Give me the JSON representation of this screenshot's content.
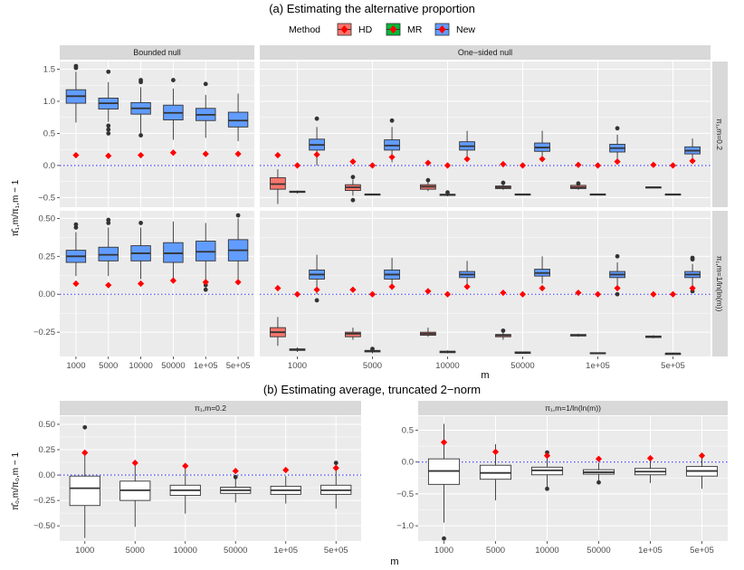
{
  "figure": {
    "title_a": "(a) Estimating the alternative proportion",
    "title_b": "(b) Estimating average, truncated 2−norm",
    "colors": {
      "panel_bg": "#ebebeb",
      "grid": "#ffffff",
      "strip_bg": "#d9d9d9",
      "hd": "#f8766d",
      "mr": "#00ba38",
      "new": "#619cff",
      "plain_box": "#ffffff",
      "mean_marker": "#ff0000",
      "outlier": "#333333",
      "ref_line": "#3333ff"
    },
    "legend": {
      "title": "Method",
      "items": [
        {
          "label": "HD",
          "color": "#f8766d"
        },
        {
          "label": "MR",
          "color": "#00ba38"
        },
        {
          "label": "New",
          "color": "#619cff"
        }
      ]
    },
    "part_a": {
      "ylabel": "π̂₁,m/π₁,m − 1",
      "xlabel": "m",
      "col_strips": [
        "Bounded null",
        "One−sided null"
      ],
      "row_strips": [
        "π₁,m=0.2",
        "π₁,m=1/ln(ln(m))"
      ]
    },
    "part_b": {
      "ylabel": "π̂₀,m/π₀,m − 1",
      "xlabel": "m",
      "strips": [
        "π₁,m=0.2",
        "π₁,m=1/ln(ln(m))"
      ]
    }
  },
  "chart_data": [
    {
      "id": "a-bounded-top",
      "type": "box",
      "categories": [
        "1000",
        "5000",
        "10000",
        "50000",
        "1e+05",
        "5e+05"
      ],
      "ylim": [
        -0.65,
        1.62
      ],
      "yticks": [
        -0.5,
        0.0,
        0.5,
        1.0,
        1.5
      ],
      "ytick_labels": [
        "−0.5",
        "0.0",
        "0.5",
        "1.0",
        "1.5"
      ],
      "ref_line": 0,
      "series": [
        {
          "name": "New",
          "boxes": [
            {
              "lo": 0.67,
              "q1": 0.97,
              "med": 1.08,
              "q3": 1.18,
              "hi": 1.46,
              "out": [
                1.52,
                1.55
              ],
              "mean": 0.16
            },
            {
              "lo": 0.68,
              "q1": 0.88,
              "med": 0.97,
              "q3": 1.05,
              "hi": 1.3,
              "out": [
                1.46,
                0.62,
                0.56,
                0.5
              ],
              "mean": 0.15
            },
            {
              "lo": 0.5,
              "q1": 0.8,
              "med": 0.89,
              "q3": 0.98,
              "hi": 1.22,
              "out": [
                1.3,
                1.33,
                0.47
              ],
              "mean": 0.16
            },
            {
              "lo": 0.4,
              "q1": 0.71,
              "med": 0.82,
              "q3": 0.94,
              "hi": 1.2,
              "out": [
                1.33
              ],
              "mean": 0.2
            },
            {
              "lo": 0.43,
              "q1": 0.7,
              "med": 0.79,
              "q3": 0.89,
              "hi": 1.1,
              "out": [
                1.27
              ],
              "mean": 0.18
            },
            {
              "lo": 0.38,
              "q1": 0.6,
              "med": 0.7,
              "q3": 0.83,
              "hi": 1.12,
              "out": [],
              "mean": 0.18
            }
          ]
        }
      ]
    },
    {
      "id": "a-onesided-top",
      "type": "box",
      "categories": [
        "1000",
        "5000",
        "10000",
        "50000",
        "1e+05",
        "5e+05"
      ],
      "ylim": [
        -0.65,
        1.62
      ],
      "ref_line": 0,
      "series": [
        {
          "name": "HD",
          "boxes": [
            {
              "lo": -0.6,
              "q1": -0.37,
              "med": -0.29,
              "q3": -0.19,
              "hi": -0.06,
              "out": [
                0.16
              ],
              "mean": 0.16
            },
            {
              "lo": -0.47,
              "q1": -0.39,
              "med": -0.34,
              "q3": -0.3,
              "hi": -0.22,
              "out": [
                -0.54,
                -0.18
              ],
              "mean": 0.06
            },
            {
              "lo": -0.4,
              "q1": -0.37,
              "med": -0.33,
              "q3": -0.3,
              "hi": -0.25,
              "out": [
                -0.23
              ],
              "mean": 0.04
            },
            {
              "lo": -0.38,
              "q1": -0.36,
              "med": -0.34,
              "q3": -0.32,
              "hi": -0.29,
              "out": [
                -0.27
              ],
              "mean": 0.02
            },
            {
              "lo": -0.38,
              "q1": -0.36,
              "med": -0.34,
              "q3": -0.31,
              "hi": -0.29,
              "out": [
                -0.28
              ],
              "mean": 0.01
            },
            {
              "lo": -0.35,
              "q1": -0.345,
              "med": -0.34,
              "q3": -0.335,
              "hi": -0.33,
              "out": [],
              "mean": 0.01
            }
          ]
        },
        {
          "name": "MR",
          "boxes": [
            {
              "lo": -0.44,
              "q1": -0.42,
              "med": -0.41,
              "q3": -0.4,
              "hi": -0.39,
              "out": [],
              "mean": 0.0
            },
            {
              "lo": -0.46,
              "q1": -0.455,
              "med": -0.45,
              "q3": -0.445,
              "hi": -0.44,
              "out": [],
              "mean": 0.0
            },
            {
              "lo": -0.48,
              "q1": -0.46,
              "med": -0.455,
              "q3": -0.45,
              "hi": -0.44,
              "out": [
                -0.42
              ],
              "mean": 0.0
            },
            {
              "lo": -0.46,
              "q1": -0.455,
              "med": -0.45,
              "q3": -0.445,
              "hi": -0.44,
              "out": [],
              "mean": 0.0
            },
            {
              "lo": -0.46,
              "q1": -0.455,
              "med": -0.45,
              "q3": -0.445,
              "hi": -0.44,
              "out": [],
              "mean": 0.0
            },
            {
              "lo": -0.46,
              "q1": -0.455,
              "med": -0.45,
              "q3": -0.445,
              "hi": -0.44,
              "out": [],
              "mean": 0.0
            }
          ]
        },
        {
          "name": "New",
          "boxes": [
            {
              "lo": 0.0,
              "q1": 0.24,
              "med": 0.32,
              "q3": 0.41,
              "hi": 0.6,
              "out": [
                0.73
              ],
              "mean": 0.17
            },
            {
              "lo": 0.05,
              "q1": 0.24,
              "med": 0.31,
              "q3": 0.4,
              "hi": 0.6,
              "out": [
                0.7
              ],
              "mean": 0.13
            },
            {
              "lo": 0.08,
              "q1": 0.24,
              "med": 0.3,
              "q3": 0.37,
              "hi": 0.54,
              "out": [],
              "mean": 0.1
            },
            {
              "lo": 0.07,
              "q1": 0.22,
              "med": 0.28,
              "q3": 0.35,
              "hi": 0.54,
              "out": [],
              "mean": 0.1
            },
            {
              "lo": 0.04,
              "q1": 0.21,
              "med": 0.27,
              "q3": 0.33,
              "hi": 0.48,
              "out": [
                0.58
              ],
              "mean": 0.06
            },
            {
              "lo": 0.03,
              "q1": 0.18,
              "med": 0.23,
              "q3": 0.29,
              "hi": 0.42,
              "out": [],
              "mean": 0.07
            }
          ]
        }
      ]
    },
    {
      "id": "a-bounded-bottom",
      "type": "box",
      "categories": [
        "1000",
        "5000",
        "10000",
        "50000",
        "1e+05",
        "5e+05"
      ],
      "ylim": [
        -0.41,
        0.55
      ],
      "yticks": [
        -0.25,
        0.0,
        0.25,
        0.5
      ],
      "ytick_labels": [
        "−0.25",
        "0.00",
        "0.25",
        "0.50"
      ],
      "ref_line": 0,
      "series": [
        {
          "name": "New",
          "boxes": [
            {
              "lo": 0.12,
              "q1": 0.21,
              "med": 0.25,
              "q3": 0.29,
              "hi": 0.41,
              "out": [
                0.44,
                0.46
              ],
              "mean": 0.07
            },
            {
              "lo": 0.12,
              "q1": 0.22,
              "med": 0.26,
              "q3": 0.31,
              "hi": 0.44,
              "out": [
                0.47,
                0.49
              ],
              "mean": 0.06
            },
            {
              "lo": 0.1,
              "q1": 0.22,
              "med": 0.27,
              "q3": 0.32,
              "hi": 0.44,
              "out": [
                0.47
              ],
              "mean": 0.07
            },
            {
              "lo": 0.1,
              "q1": 0.21,
              "med": 0.27,
              "q3": 0.34,
              "hi": 0.48,
              "out": [],
              "mean": 0.09
            },
            {
              "lo": 0.09,
              "q1": 0.22,
              "med": 0.28,
              "q3": 0.35,
              "hi": 0.47,
              "out": [
                0.06,
                0.03
              ],
              "mean": 0.08
            },
            {
              "lo": 0.08,
              "q1": 0.22,
              "med": 0.29,
              "q3": 0.36,
              "hi": 0.5,
              "out": [
                0.52
              ],
              "mean": 0.08
            }
          ]
        }
      ]
    },
    {
      "id": "a-onesided-bottom",
      "type": "box",
      "categories": [
        "1000",
        "5000",
        "10000",
        "50000",
        "1e+05",
        "5e+05"
      ],
      "ylim": [
        -0.41,
        0.55
      ],
      "ref_line": 0,
      "series": [
        {
          "name": "HD",
          "boxes": [
            {
              "lo": -0.34,
              "q1": -0.28,
              "med": -0.25,
              "q3": -0.22,
              "hi": -0.15,
              "out": [],
              "mean": 0.04
            },
            {
              "lo": -0.3,
              "q1": -0.28,
              "med": -0.26,
              "q3": -0.25,
              "hi": -0.22,
              "out": [],
              "mean": 0.03
            },
            {
              "lo": -0.28,
              "q1": -0.27,
              "med": -0.26,
              "q3": -0.25,
              "hi": -0.22,
              "out": [],
              "mean": 0.02
            },
            {
              "lo": -0.3,
              "q1": -0.28,
              "med": -0.27,
              "q3": -0.265,
              "hi": -0.25,
              "out": [
                -0.24
              ],
              "mean": 0.01
            },
            {
              "lo": -0.28,
              "q1": -0.275,
              "med": -0.27,
              "q3": -0.265,
              "hi": -0.26,
              "out": [],
              "mean": 0.01
            },
            {
              "lo": -0.29,
              "q1": -0.285,
              "med": -0.28,
              "q3": -0.275,
              "hi": -0.27,
              "out": [],
              "mean": 0.0
            }
          ]
        },
        {
          "name": "MR",
          "boxes": [
            {
              "lo": -0.38,
              "q1": -0.37,
              "med": -0.365,
              "q3": -0.36,
              "hi": -0.35,
              "out": [],
              "mean": 0.0
            },
            {
              "lo": -0.39,
              "q1": -0.38,
              "med": -0.375,
              "q3": -0.37,
              "hi": -0.365,
              "out": [
                -0.36
              ],
              "mean": 0.0
            },
            {
              "lo": -0.39,
              "q1": -0.385,
              "med": -0.38,
              "q3": -0.375,
              "hi": -0.37,
              "out": [],
              "mean": 0.0
            },
            {
              "lo": -0.39,
              "q1": -0.39,
              "med": -0.385,
              "q3": -0.38,
              "hi": -0.38,
              "out": [],
              "mean": 0.0
            },
            {
              "lo": -0.395,
              "q1": -0.39,
              "med": -0.39,
              "q3": -0.385,
              "hi": -0.385,
              "out": [],
              "mean": 0.0
            },
            {
              "lo": -0.4,
              "q1": -0.395,
              "med": -0.39,
              "q3": -0.39,
              "hi": -0.385,
              "out": [],
              "mean": 0.0
            }
          ]
        },
        {
          "name": "New",
          "boxes": [
            {
              "lo": 0.0,
              "q1": 0.1,
              "med": 0.13,
              "q3": 0.16,
              "hi": 0.26,
              "out": [
                -0.04
              ],
              "mean": 0.03
            },
            {
              "lo": 0.03,
              "q1": 0.1,
              "med": 0.13,
              "q3": 0.16,
              "hi": 0.24,
              "out": [],
              "mean": 0.05
            },
            {
              "lo": 0.06,
              "q1": 0.11,
              "med": 0.13,
              "q3": 0.15,
              "hi": 0.22,
              "out": [],
              "mean": 0.05
            },
            {
              "lo": 0.07,
              "q1": 0.12,
              "med": 0.14,
              "q3": 0.165,
              "hi": 0.25,
              "out": [],
              "mean": 0.04
            },
            {
              "lo": 0.05,
              "q1": 0.11,
              "med": 0.13,
              "q3": 0.15,
              "hi": 0.21,
              "out": [
                0.25,
                0.0
              ],
              "mean": 0.04
            },
            {
              "lo": 0.04,
              "q1": 0.11,
              "med": 0.13,
              "q3": 0.15,
              "hi": 0.2,
              "out": [
                0.23,
                0.24,
                0.02
              ],
              "mean": 0.04
            }
          ]
        }
      ]
    },
    {
      "id": "b-left",
      "type": "box",
      "categories": [
        "1000",
        "5000",
        "10000",
        "50000",
        "1e+05",
        "5e+05"
      ],
      "ylim": [
        -0.65,
        0.58
      ],
      "yticks": [
        -0.5,
        -0.25,
        0.0,
        0.25,
        0.5
      ],
      "ytick_labels": [
        "−0.50",
        "−0.25",
        "0.00",
        "0.25",
        "0.50"
      ],
      "ref_line": 0,
      "series": [
        {
          "name": "plain",
          "boxes": [
            {
              "lo": -0.62,
              "q1": -0.3,
              "med": -0.13,
              "q3": -0.01,
              "hi": 0.24,
              "out": [
                0.47
              ],
              "mean": 0.22
            },
            {
              "lo": -0.51,
              "q1": -0.25,
              "med": -0.15,
              "q3": -0.06,
              "hi": 0.12,
              "out": [],
              "mean": 0.12
            },
            {
              "lo": -0.38,
              "q1": -0.2,
              "med": -0.15,
              "q3": -0.1,
              "hi": 0.06,
              "out": [],
              "mean": 0.09
            },
            {
              "lo": -0.27,
              "q1": -0.18,
              "med": -0.15,
              "q3": -0.12,
              "hi": -0.02,
              "out": [
                -0.02
              ],
              "mean": 0.04
            },
            {
              "lo": -0.28,
              "q1": -0.19,
              "med": -0.15,
              "q3": -0.11,
              "hi": -0.01,
              "out": [],
              "mean": 0.05
            },
            {
              "lo": -0.33,
              "q1": -0.19,
              "med": -0.15,
              "q3": -0.1,
              "hi": 0.06,
              "out": [
                0.12
              ],
              "mean": 0.07
            }
          ]
        }
      ]
    },
    {
      "id": "b-right",
      "type": "box",
      "categories": [
        "1000",
        "5000",
        "10000",
        "50000",
        "1e+05",
        "5e+05"
      ],
      "ylim": [
        -1.24,
        0.72
      ],
      "yticks": [
        -1.0,
        -0.5,
        0.0,
        0.5
      ],
      "ytick_labels": [
        "−1.0",
        "−0.5",
        "0.0",
        "0.5"
      ],
      "ref_line": 0,
      "series": [
        {
          "name": "plain",
          "boxes": [
            {
              "lo": -0.95,
              "q1": -0.35,
              "med": -0.14,
              "q3": 0.05,
              "hi": 0.6,
              "out": [
                -1.2
              ],
              "mean": 0.31
            },
            {
              "lo": -0.6,
              "q1": -0.27,
              "med": -0.17,
              "q3": -0.05,
              "hi": 0.28,
              "out": [],
              "mean": 0.16
            },
            {
              "lo": -0.4,
              "q1": -0.2,
              "med": -0.13,
              "q3": -0.08,
              "hi": 0.13,
              "out": [
                0.15,
                -0.42
              ],
              "mean": 0.1
            },
            {
              "lo": -0.3,
              "q1": -0.19,
              "med": -0.16,
              "q3": -0.12,
              "hi": -0.01,
              "out": [
                -0.32
              ],
              "mean": 0.05
            },
            {
              "lo": -0.33,
              "q1": -0.2,
              "med": -0.15,
              "q3": -0.1,
              "hi": 0.03,
              "out": [],
              "mean": 0.06
            },
            {
              "lo": -0.42,
              "q1": -0.22,
              "med": -0.14,
              "q3": -0.07,
              "hi": 0.1,
              "out": [],
              "mean": 0.1
            }
          ]
        }
      ]
    }
  ]
}
